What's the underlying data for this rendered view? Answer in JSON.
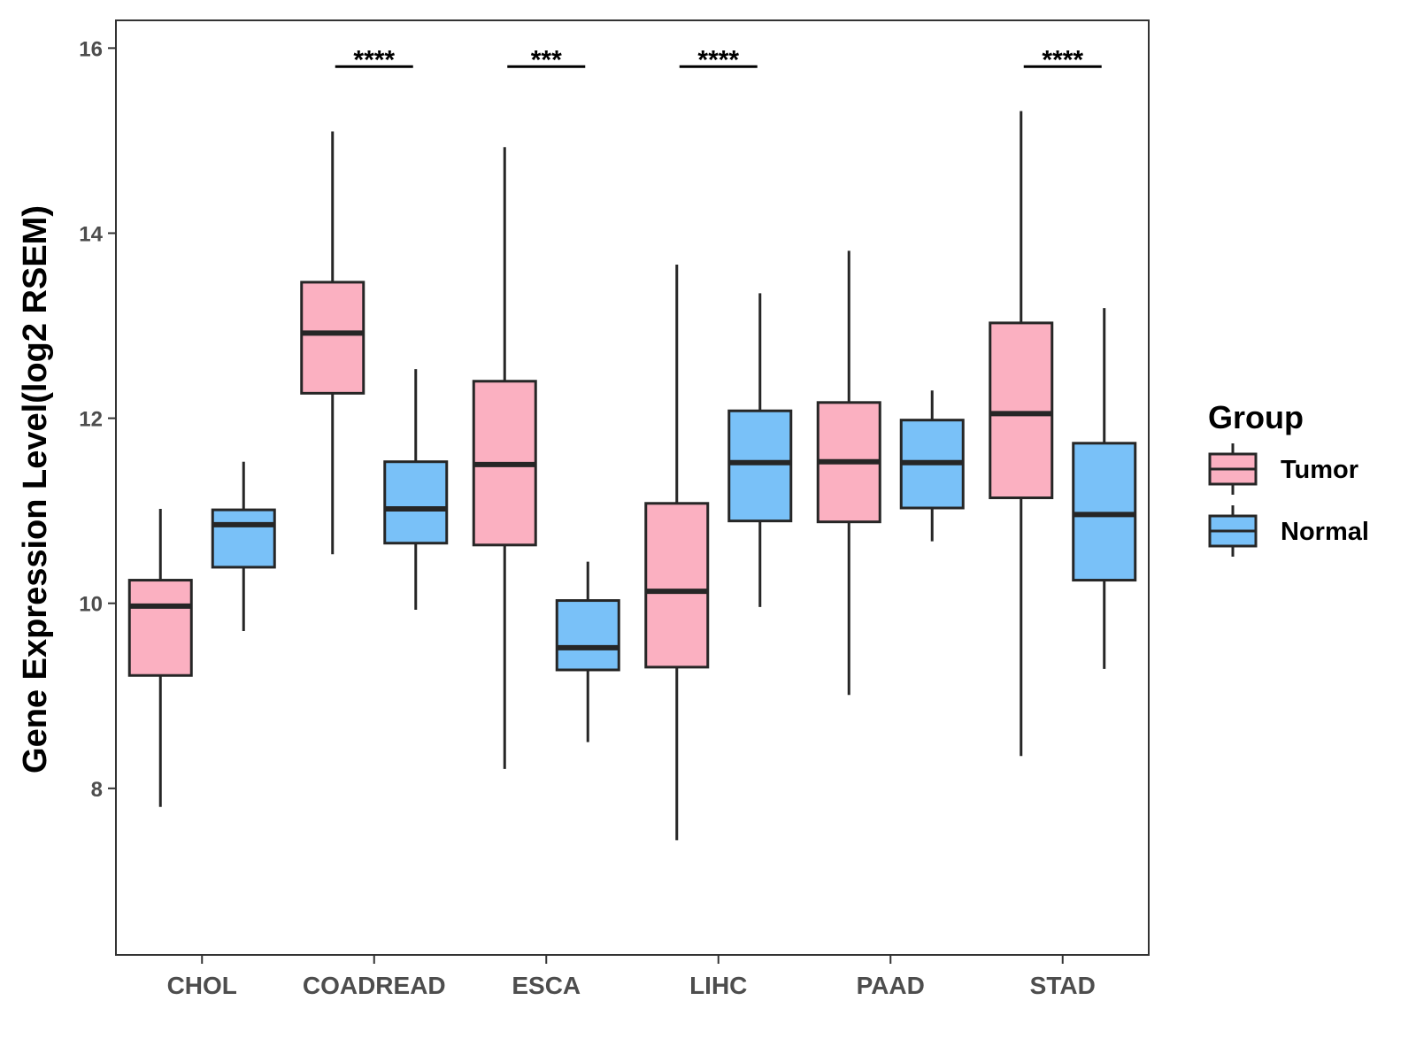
{
  "chart_data": {
    "type": "boxplot",
    "title": "",
    "xlabel": "",
    "ylabel": "Gene Expression Level(log2 RSEM)",
    "ylim": [
      6.2,
      16.3
    ],
    "yticks": [
      8,
      10,
      12,
      14,
      16
    ],
    "categories": [
      "CHOL",
      "COADREAD",
      "ESCA",
      "LIHC",
      "PAAD",
      "STAD"
    ],
    "legend": {
      "title": "Group",
      "position": "right",
      "entries": [
        "Tumor",
        "Normal"
      ]
    },
    "colors": {
      "Tumor": "#fbb0c1",
      "Normal": "#79c1f8",
      "stroke": "#262626"
    },
    "series": [
      {
        "name": "Tumor",
        "boxes": [
          {
            "min": 7.8,
            "q1": 9.22,
            "median": 9.97,
            "q3": 10.25,
            "max": 11.02
          },
          {
            "min": 10.53,
            "q1": 12.27,
            "median": 12.92,
            "q3": 13.47,
            "max": 15.1
          },
          {
            "min": 8.21,
            "q1": 10.63,
            "median": 11.5,
            "q3": 12.4,
            "max": 14.93
          },
          {
            "min": 7.44,
            "q1": 9.31,
            "median": 10.13,
            "q3": 11.08,
            "max": 13.66
          },
          {
            "min": 9.01,
            "q1": 10.88,
            "median": 11.53,
            "q3": 12.17,
            "max": 13.81
          },
          {
            "min": 8.35,
            "q1": 11.14,
            "median": 12.05,
            "q3": 13.03,
            "max": 15.32
          }
        ]
      },
      {
        "name": "Normal",
        "boxes": [
          {
            "min": 9.7,
            "q1": 10.39,
            "median": 10.85,
            "q3": 11.01,
            "max": 11.53
          },
          {
            "min": 9.93,
            "q1": 10.65,
            "median": 11.02,
            "q3": 11.53,
            "max": 12.53
          },
          {
            "min": 8.5,
            "q1": 9.28,
            "median": 9.52,
            "q3": 10.03,
            "max": 10.45
          },
          {
            "min": 9.96,
            "q1": 10.89,
            "median": 11.52,
            "q3": 12.08,
            "max": 13.35
          },
          {
            "min": 10.67,
            "q1": 11.03,
            "median": 11.52,
            "q3": 11.98,
            "max": 12.3
          },
          {
            "min": 9.29,
            "q1": 10.25,
            "median": 10.96,
            "q3": 11.73,
            "max": 13.19
          }
        ]
      }
    ],
    "significance": [
      {
        "category": "COADREAD",
        "label": "****"
      },
      {
        "category": "ESCA",
        "label": "***"
      },
      {
        "category": "LIHC",
        "label": "****"
      },
      {
        "category": "STAD",
        "label": "****"
      }
    ],
    "significance_level": 15.8
  }
}
